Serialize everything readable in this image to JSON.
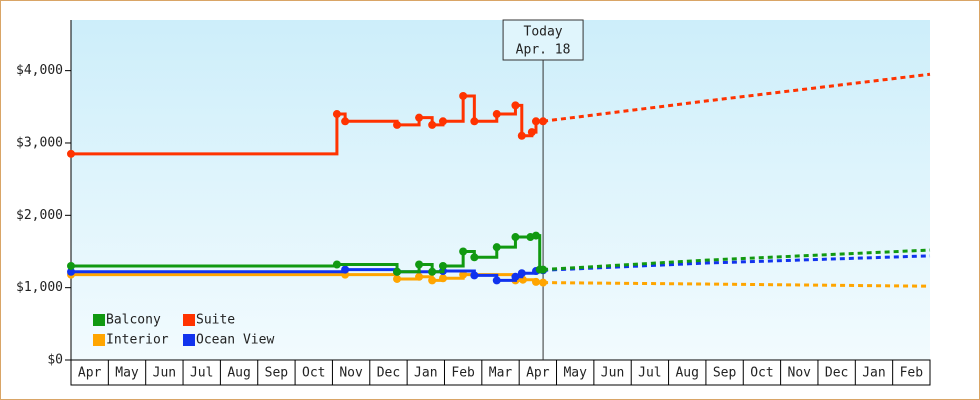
{
  "chart_data": {
    "type": "step-line",
    "annotation": {
      "lines": [
        "Today",
        "Apr. 18"
      ],
      "x": 12.64
    },
    "categories": [
      "Apr",
      "May",
      "Jun",
      "Jul",
      "Aug",
      "Sep",
      "Oct",
      "Nov",
      "Dec",
      "Jan",
      "Feb",
      "Mar",
      "Apr",
      "May",
      "Jun",
      "Jul",
      "Aug",
      "Sep",
      "Oct",
      "Nov",
      "Dec",
      "Jan",
      "Feb"
    ],
    "xlim": [
      0,
      23
    ],
    "ylim": [
      0,
      4700
    ],
    "yticks": [
      {
        "value": 0,
        "label": "$0"
      },
      {
        "value": 1000,
        "label": "$1,000"
      },
      {
        "value": 2000,
        "label": "$2,000"
      },
      {
        "value": 3000,
        "label": "$3,000"
      },
      {
        "value": 4000,
        "label": "$4,000"
      }
    ],
    "grid": false,
    "legend": "lower left",
    "series": [
      {
        "name": "Balcony",
        "color": "#119911",
        "x": [
          0,
          7.12,
          8.73,
          9.32,
          9.67,
          9.96,
          10.5,
          10.8,
          11.4,
          11.9,
          12.3,
          12.45,
          12.55,
          12.64
        ],
        "values": [
          1300,
          1320,
          1220,
          1320,
          1220,
          1300,
          1500,
          1420,
          1560,
          1700,
          1700,
          1720,
          1250,
          1250
        ],
        "forecast_x": [
          12.64,
          17,
          23
        ],
        "forecast_values": [
          1250,
          1380,
          1520
        ]
      },
      {
        "name": "Suite",
        "color": "#ff3300",
        "x": [
          0,
          7.12,
          7.34,
          8.73,
          9.32,
          9.67,
          9.96,
          10.5,
          10.8,
          11.4,
          11.9,
          12.07,
          12.34,
          12.45,
          12.64
        ],
        "values": [
          2850,
          3400,
          3300,
          3250,
          3350,
          3250,
          3300,
          3650,
          3300,
          3400,
          3520,
          3100,
          3150,
          3300,
          3300
        ],
        "forecast_x": [
          12.64,
          17,
          23
        ],
        "forecast_values": [
          3300,
          3580,
          3950
        ]
      },
      {
        "name": "Interior",
        "color": "#ffa500",
        "x": [
          0,
          7.34,
          8.73,
          9.32,
          9.67,
          9.96,
          10.5,
          11.9,
          12.1,
          12.45,
          12.64
        ],
        "values": [
          1180,
          1180,
          1120,
          1150,
          1100,
          1130,
          1180,
          1100,
          1110,
          1080,
          1070
        ],
        "forecast_x": [
          12.64,
          17,
          23
        ],
        "forecast_values": [
          1070,
          1050,
          1020
        ]
      },
      {
        "name": "Ocean View",
        "color": "#1133ee",
        "x": [
          0,
          7.34,
          8.73,
          9.96,
          10.8,
          11.4,
          11.9,
          12.07,
          12.45,
          12.64
        ],
        "values": [
          1220,
          1250,
          1220,
          1230,
          1170,
          1100,
          1150,
          1200,
          1230,
          1240
        ],
        "forecast_x": [
          12.64,
          17,
          23
        ],
        "forecast_values": [
          1240,
          1340,
          1440
        ]
      }
    ]
  }
}
